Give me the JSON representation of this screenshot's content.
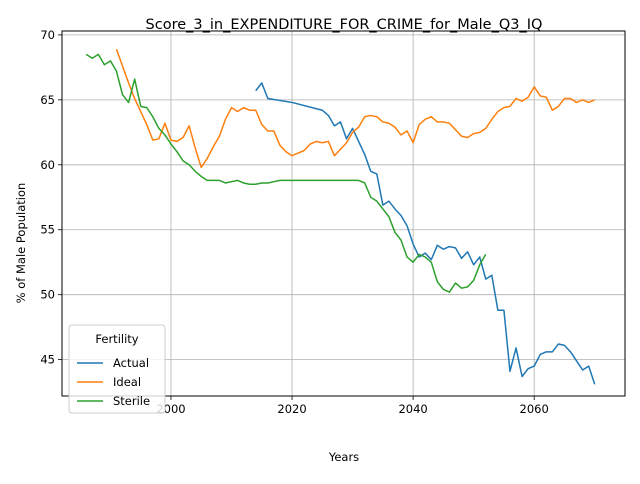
{
  "chart_data": {
    "type": "line",
    "title": "Score_3_in_EXPENDITURE_FOR_CRIME_for_Male_Q3_IQ",
    "xlabel": "Years",
    "ylabel": "% of Male Population",
    "xlim": [
      1982,
      2075
    ],
    "ylim": [
      42.2,
      70.3
    ],
    "x_ticks": [
      2000,
      2020,
      2040,
      2060
    ],
    "y_ticks": [
      45,
      50,
      55,
      60,
      65,
      70
    ],
    "grid": true,
    "legend": {
      "title": "Fertility",
      "placement": "lower-left"
    },
    "series": [
      {
        "name": "Actual",
        "color": "#1f77b4",
        "points": [
          [
            2014,
            65.7
          ],
          [
            2015,
            66.3
          ],
          [
            2016,
            65.1
          ],
          [
            2020,
            64.8
          ],
          [
            2025,
            64.2
          ],
          [
            2026,
            63.8
          ],
          [
            2027,
            63.0
          ],
          [
            2028,
            63.3
          ],
          [
            2029,
            62.0
          ],
          [
            2030,
            62.8
          ],
          [
            2031,
            61.8
          ],
          [
            2032,
            60.8
          ],
          [
            2033,
            59.5
          ],
          [
            2034,
            59.3
          ],
          [
            2035,
            56.9
          ],
          [
            2036,
            57.2
          ],
          [
            2037,
            56.6
          ],
          [
            2038,
            56.1
          ],
          [
            2039,
            55.3
          ],
          [
            2040,
            53.9
          ],
          [
            2041,
            52.9
          ],
          [
            2042,
            53.2
          ],
          [
            2043,
            52.7
          ],
          [
            2044,
            53.8
          ],
          [
            2045,
            53.5
          ],
          [
            2046,
            53.7
          ],
          [
            2047,
            53.6
          ],
          [
            2048,
            52.8
          ],
          [
            2049,
            53.3
          ],
          [
            2050,
            52.3
          ],
          [
            2051,
            52.9
          ],
          [
            2052,
            51.2
          ],
          [
            2053,
            51.5
          ],
          [
            2054,
            48.8
          ],
          [
            2055,
            48.8
          ],
          [
            2056,
            44.1
          ],
          [
            2057,
            45.9
          ],
          [
            2058,
            43.7
          ],
          [
            2059,
            44.3
          ],
          [
            2060,
            44.5
          ],
          [
            2061,
            45.4
          ],
          [
            2062,
            45.6
          ],
          [
            2063,
            45.6
          ],
          [
            2064,
            46.2
          ],
          [
            2065,
            46.1
          ],
          [
            2066,
            45.6
          ],
          [
            2067,
            44.9
          ],
          [
            2068,
            44.2
          ],
          [
            2069,
            44.5
          ],
          [
            2070,
            43.1
          ]
        ]
      },
      {
        "name": "Ideal",
        "color": "#ff7f0e",
        "points": [
          [
            1991,
            68.9
          ],
          [
            1992,
            67.6
          ],
          [
            1993,
            66.3
          ],
          [
            1994,
            65.1
          ],
          [
            1995,
            64.1
          ],
          [
            1996,
            63.1
          ],
          [
            1997,
            61.9
          ],
          [
            1998,
            62.0
          ],
          [
            1999,
            63.2
          ],
          [
            2000,
            61.9
          ],
          [
            2001,
            61.8
          ],
          [
            2002,
            62.1
          ],
          [
            2003,
            63.0
          ],
          [
            2004,
            61.3
          ],
          [
            2005,
            59.8
          ],
          [
            2006,
            60.5
          ],
          [
            2007,
            61.4
          ],
          [
            2008,
            62.2
          ],
          [
            2009,
            63.5
          ],
          [
            2010,
            64.4
          ],
          [
            2011,
            64.1
          ],
          [
            2012,
            64.4
          ],
          [
            2013,
            64.2
          ],
          [
            2014,
            64.2
          ],
          [
            2015,
            63.1
          ],
          [
            2016,
            62.6
          ],
          [
            2017,
            62.6
          ],
          [
            2018,
            61.5
          ],
          [
            2019,
            61.0
          ],
          [
            2020,
            60.7
          ],
          [
            2021,
            60.9
          ],
          [
            2022,
            61.1
          ],
          [
            2023,
            61.6
          ],
          [
            2024,
            61.8
          ],
          [
            2025,
            61.7
          ],
          [
            2026,
            61.8
          ],
          [
            2027,
            60.7
          ],
          [
            2028,
            61.2
          ],
          [
            2029,
            61.7
          ],
          [
            2030,
            62.5
          ],
          [
            2031,
            62.9
          ],
          [
            2032,
            63.7
          ],
          [
            2033,
            63.8
          ],
          [
            2034,
            63.7
          ],
          [
            2035,
            63.3
          ],
          [
            2036,
            63.2
          ],
          [
            2037,
            62.9
          ],
          [
            2038,
            62.3
          ],
          [
            2039,
            62.6
          ],
          [
            2040,
            61.7
          ],
          [
            2041,
            63.1
          ],
          [
            2042,
            63.5
          ],
          [
            2043,
            63.7
          ],
          [
            2044,
            63.3
          ],
          [
            2045,
            63.3
          ],
          [
            2046,
            63.2
          ],
          [
            2047,
            62.7
          ],
          [
            2048,
            62.2
          ],
          [
            2049,
            62.1
          ],
          [
            2050,
            62.4
          ],
          [
            2051,
            62.5
          ],
          [
            2052,
            62.8
          ],
          [
            2053,
            63.5
          ],
          [
            2054,
            64.1
          ],
          [
            2055,
            64.4
          ],
          [
            2056,
            64.5
          ],
          [
            2057,
            65.1
          ],
          [
            2058,
            64.9
          ],
          [
            2059,
            65.2
          ],
          [
            2060,
            66.0
          ],
          [
            2061,
            65.3
          ],
          [
            2062,
            65.2
          ],
          [
            2063,
            64.2
          ],
          [
            2064,
            64.5
          ],
          [
            2065,
            65.1
          ],
          [
            2066,
            65.1
          ],
          [
            2067,
            64.8
          ],
          [
            2068,
            65.0
          ],
          [
            2069,
            64.8
          ],
          [
            2070,
            65.0
          ]
        ]
      },
      {
        "name": "Sterile",
        "color": "#2ca02c",
        "points": [
          [
            1986,
            68.5
          ],
          [
            1987,
            68.2
          ],
          [
            1988,
            68.5
          ],
          [
            1989,
            67.7
          ],
          [
            1990,
            68.0
          ],
          [
            1991,
            67.2
          ],
          [
            1992,
            65.4
          ],
          [
            1993,
            64.8
          ],
          [
            1994,
            66.6
          ],
          [
            1995,
            64.5
          ],
          [
            1996,
            64.4
          ],
          [
            1997,
            63.7
          ],
          [
            1998,
            62.8
          ],
          [
            1999,
            62.3
          ],
          [
            2000,
            61.6
          ],
          [
            2001,
            61.0
          ],
          [
            2002,
            60.3
          ],
          [
            2003,
            60.0
          ],
          [
            2004,
            59.5
          ],
          [
            2005,
            59.1
          ],
          [
            2006,
            58.8
          ],
          [
            2007,
            58.8
          ],
          [
            2008,
            58.8
          ],
          [
            2009,
            58.6
          ],
          [
            2010,
            58.7
          ],
          [
            2011,
            58.8
          ],
          [
            2012,
            58.6
          ],
          [
            2013,
            58.5
          ],
          [
            2014,
            58.5
          ],
          [
            2015,
            58.6
          ],
          [
            2016,
            58.6
          ],
          [
            2017,
            58.7
          ],
          [
            2018,
            58.8
          ],
          [
            2019,
            58.8
          ],
          [
            2020,
            58.8
          ],
          [
            2025,
            58.8
          ],
          [
            2030,
            58.8
          ],
          [
            2031,
            58.8
          ],
          [
            2032,
            58.6
          ],
          [
            2033,
            57.5
          ],
          [
            2034,
            57.2
          ],
          [
            2035,
            56.6
          ],
          [
            2036,
            56.0
          ],
          [
            2037,
            54.8
          ],
          [
            2038,
            54.2
          ],
          [
            2039,
            52.9
          ],
          [
            2040,
            52.5
          ],
          [
            2041,
            53.1
          ],
          [
            2042,
            52.9
          ],
          [
            2043,
            52.5
          ],
          [
            2044,
            51.0
          ],
          [
            2045,
            50.4
          ],
          [
            2046,
            50.2
          ],
          [
            2047,
            50.9
          ],
          [
            2048,
            50.5
          ],
          [
            2049,
            50.6
          ],
          [
            2050,
            51.1
          ],
          [
            2051,
            52.3
          ],
          [
            2052,
            53.1
          ]
        ]
      }
    ]
  }
}
